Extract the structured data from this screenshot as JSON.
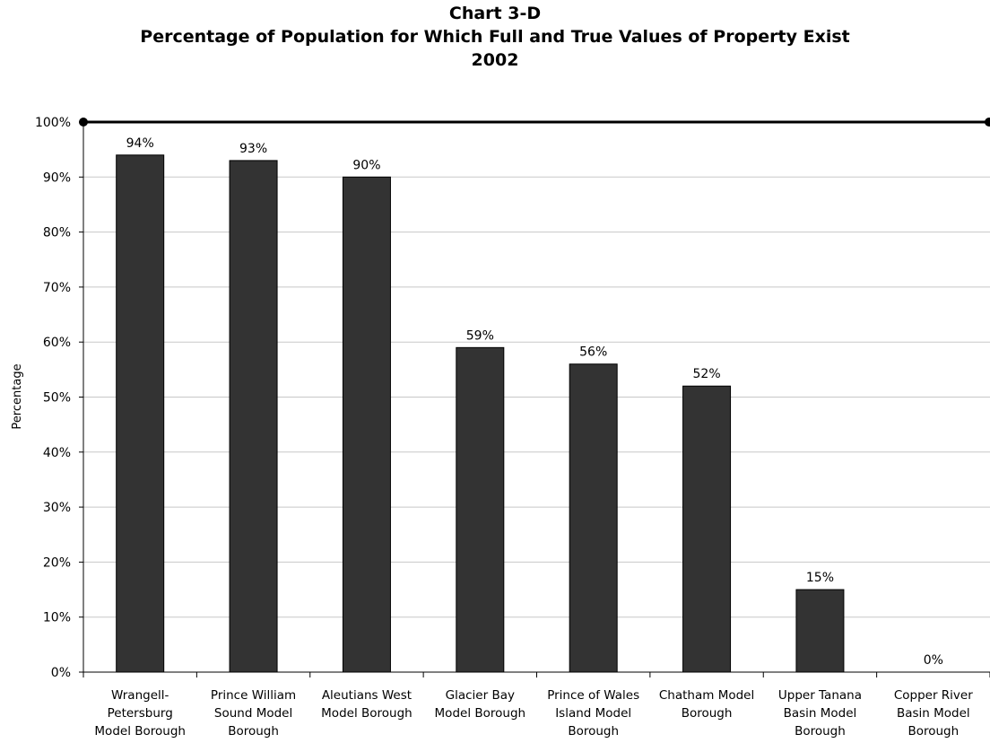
{
  "chart_data": {
    "type": "bar",
    "title": "Chart 3-D",
    "subtitle": "Percentage of Population for Which Full and True Values of Property Exist",
    "subtitle2": "2002",
    "xlabel": "",
    "ylabel": "Percentage",
    "ylim": [
      0,
      100
    ],
    "yticks": [
      0,
      10,
      20,
      30,
      40,
      50,
      60,
      70,
      80,
      90,
      100
    ],
    "ytick_labels": [
      "0%",
      "10%",
      "20%",
      "30%",
      "40%",
      "50%",
      "60%",
      "70%",
      "80%",
      "90%",
      "100%"
    ],
    "grid": true,
    "legend": "none",
    "bar_color": "#333333",
    "categories": [
      [
        "Wrangell-",
        "Petersburg",
        "Model Borough"
      ],
      [
        "Prince William",
        "Sound Model",
        "Borough"
      ],
      [
        "Aleutians West",
        "Model Borough"
      ],
      [
        "Glacier Bay",
        "Model Borough"
      ],
      [
        "Prince of Wales",
        "Island Model",
        "Borough"
      ],
      [
        "Chatham Model",
        "Borough"
      ],
      [
        "Upper Tanana",
        "Basin Model",
        "Borough"
      ],
      [
        "Copper River",
        "Basin Model",
        "Borough"
      ]
    ],
    "values": [
      94,
      93,
      90,
      59,
      56,
      52,
      15,
      0
    ],
    "value_labels": [
      "94%",
      "93%",
      "90%",
      "59%",
      "56%",
      "52%",
      "15%",
      "0%"
    ]
  }
}
